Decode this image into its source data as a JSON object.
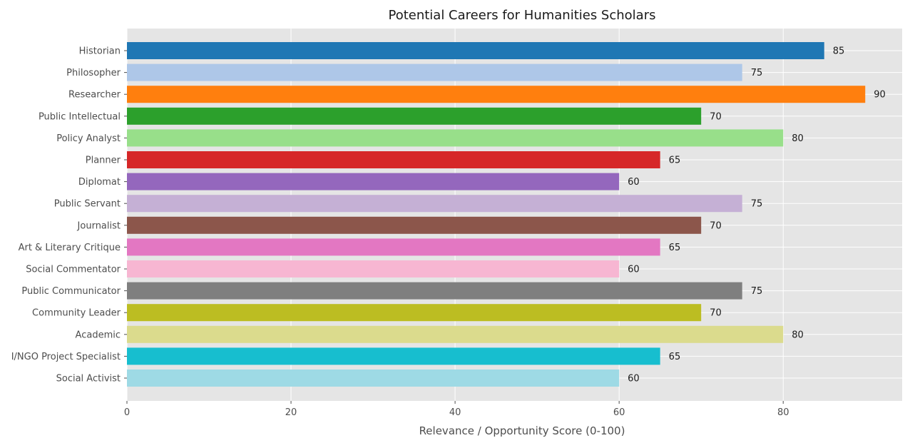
{
  "chart_data": {
    "type": "bar",
    "orientation": "horizontal",
    "title": "Potential Careers for Humanities Scholars",
    "xlabel": "Relevance / Opportunity Score (0-100)",
    "ylabel": "",
    "xlim": [
      0,
      94.5
    ],
    "xticks": [
      0,
      20,
      40,
      60,
      80
    ],
    "grid": true,
    "categories": [
      "Historian",
      "Philosopher",
      "Researcher",
      "Public Intellectual",
      "Policy Analyst",
      "Planner",
      "Diplomat",
      "Public Servant",
      "Journalist",
      "Art & Literary Critique",
      "Social Commentator",
      "Public Communicator",
      "Community Leader",
      "Academic",
      "I/NGO Project Specialist",
      "Social Activist"
    ],
    "values": [
      85,
      75,
      90,
      70,
      80,
      65,
      60,
      75,
      70,
      65,
      60,
      75,
      70,
      80,
      65,
      60
    ],
    "colors": [
      "#1f77b4",
      "#aec7e8",
      "#ff7f0e",
      "#2ca02c",
      "#98df8a",
      "#d62728",
      "#9467bd",
      "#c5b0d5",
      "#8c564b",
      "#e377c2",
      "#f7b6d2",
      "#7f7f7f",
      "#bcbd22",
      "#dbdb8d",
      "#17becf",
      "#9edae5"
    ],
    "background": "#e5e5e5"
  }
}
